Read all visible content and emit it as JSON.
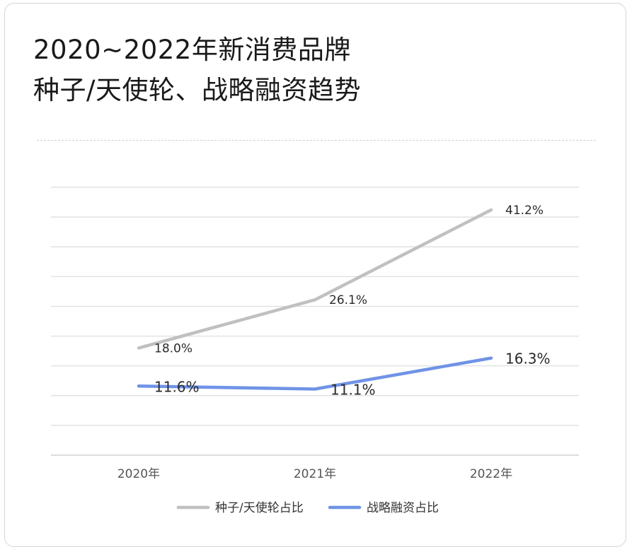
{
  "title_lines": [
    "2020~2022年新消费品牌",
    "种子/天使轮、战略融资趋势"
  ],
  "chart_data": {
    "type": "line",
    "title": "2020~2022年新消费品牌 种子/天使轮、战略融资趋势",
    "categories": [
      "2020年",
      "2021年",
      "2022年"
    ],
    "series": [
      {
        "name": "种子/天使轮占比",
        "values": [
          18.0,
          26.1,
          41.2
        ],
        "labels": [
          "18.0%",
          "26.1%",
          "41.2%"
        ],
        "color": "#c0c0c0"
      },
      {
        "name": "战略融资占比",
        "values": [
          11.6,
          11.1,
          16.3
        ],
        "labels": [
          "11.6%",
          "11.1%",
          "16.3%"
        ],
        "color": "#6f93e6"
      }
    ],
    "ylim": [
      0,
      45
    ],
    "grid": true,
    "legend": "bottom",
    "xlabel": "",
    "ylabel": ""
  }
}
